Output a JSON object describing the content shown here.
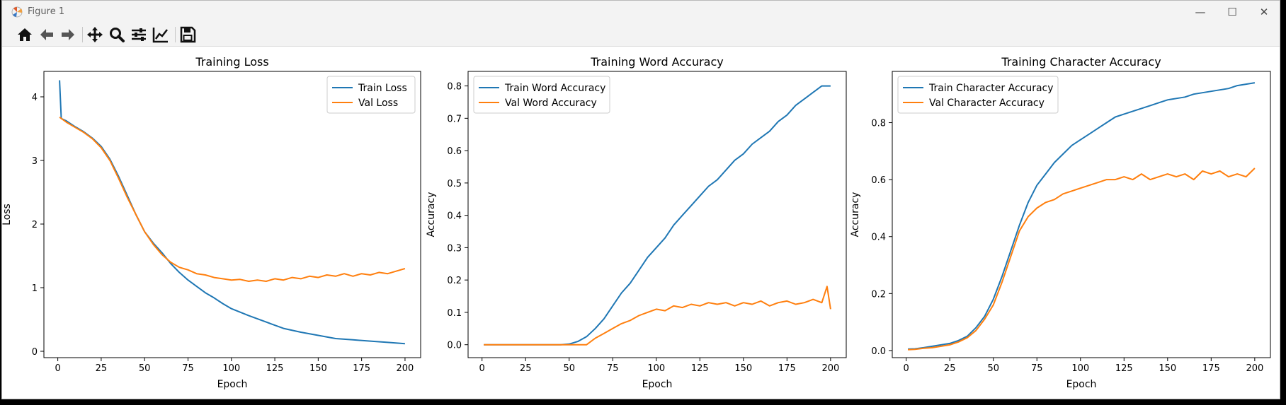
{
  "window": {
    "title": "Figure 1"
  },
  "toolbar": {
    "buttons": [
      {
        "name": "home-icon"
      },
      {
        "name": "back-arrow-icon"
      },
      {
        "name": "forward-arrow-icon"
      },
      {
        "name": "pan-icon"
      },
      {
        "name": "zoom-icon"
      },
      {
        "name": "subplots-config-icon"
      },
      {
        "name": "axes-edit-icon"
      },
      {
        "name": "save-icon"
      }
    ]
  },
  "chart_data": [
    {
      "type": "line",
      "title": "Training Loss",
      "xlabel": "Epoch",
      "ylabel": "Loss",
      "xlim": [
        -8,
        209
      ],
      "ylim": [
        -0.1,
        4.4
      ],
      "xticks": [
        0,
        25,
        50,
        75,
        100,
        125,
        150,
        175,
        200
      ],
      "yticks": [
        0,
        1,
        2,
        3,
        4
      ],
      "legend_location": "top-right",
      "series": [
        {
          "name": "Train Loss",
          "color": "#1f77b4",
          "x": [
            1,
            2,
            5,
            10,
            15,
            20,
            25,
            30,
            35,
            40,
            45,
            50,
            55,
            60,
            65,
            70,
            75,
            80,
            85,
            90,
            95,
            100,
            110,
            120,
            130,
            140,
            150,
            160,
            170,
            180,
            190,
            200
          ],
          "y": [
            4.26,
            3.66,
            3.62,
            3.53,
            3.45,
            3.35,
            3.22,
            3.02,
            2.75,
            2.45,
            2.15,
            1.88,
            1.7,
            1.55,
            1.38,
            1.24,
            1.12,
            1.02,
            0.92,
            0.84,
            0.75,
            0.67,
            0.56,
            0.46,
            0.36,
            0.3,
            0.25,
            0.2,
            0.18,
            0.16,
            0.14,
            0.12
          ]
        },
        {
          "name": "Val Loss",
          "color": "#ff7f0e",
          "x": [
            1,
            5,
            10,
            15,
            20,
            25,
            30,
            35,
            40,
            45,
            50,
            55,
            60,
            65,
            70,
            75,
            80,
            85,
            90,
            95,
            100,
            105,
            110,
            115,
            120,
            125,
            130,
            135,
            140,
            145,
            150,
            155,
            160,
            165,
            170,
            175,
            180,
            185,
            190,
            195,
            200
          ],
          "y": [
            3.68,
            3.6,
            3.52,
            3.44,
            3.34,
            3.2,
            3.0,
            2.72,
            2.42,
            2.15,
            1.88,
            1.68,
            1.52,
            1.4,
            1.32,
            1.28,
            1.22,
            1.2,
            1.16,
            1.14,
            1.12,
            1.13,
            1.1,
            1.12,
            1.1,
            1.14,
            1.12,
            1.16,
            1.14,
            1.18,
            1.16,
            1.2,
            1.18,
            1.22,
            1.18,
            1.22,
            1.2,
            1.24,
            1.22,
            1.26,
            1.3
          ]
        }
      ]
    },
    {
      "type": "line",
      "title": "Training Word Accuracy",
      "xlabel": "Epoch",
      "ylabel": "Accuracy",
      "xlim": [
        -8,
        209
      ],
      "ylim": [
        -0.04,
        0.845
      ],
      "xticks": [
        0,
        25,
        50,
        75,
        100,
        125,
        150,
        175,
        200
      ],
      "yticks": [
        0.0,
        0.1,
        0.2,
        0.3,
        0.4,
        0.5,
        0.6,
        0.7,
        0.8
      ],
      "ytick_labels": [
        "0.0",
        "0.1",
        "0.2",
        "0.3",
        "0.4",
        "0.5",
        "0.6",
        "0.7",
        "0.8"
      ],
      "legend_location": "top-left",
      "series": [
        {
          "name": "Train Word Accuracy",
          "color": "#1f77b4",
          "x": [
            1,
            45,
            50,
            55,
            60,
            65,
            70,
            75,
            80,
            85,
            90,
            95,
            100,
            105,
            110,
            115,
            120,
            125,
            130,
            135,
            140,
            145,
            150,
            155,
            160,
            165,
            170,
            175,
            180,
            185,
            190,
            195,
            200
          ],
          "y": [
            0,
            0,
            0.002,
            0.01,
            0.025,
            0.05,
            0.08,
            0.12,
            0.16,
            0.19,
            0.23,
            0.27,
            0.3,
            0.33,
            0.37,
            0.4,
            0.43,
            0.46,
            0.49,
            0.51,
            0.54,
            0.57,
            0.59,
            0.62,
            0.64,
            0.66,
            0.69,
            0.71,
            0.74,
            0.76,
            0.78,
            0.8,
            0.8
          ]
        },
        {
          "name": "Val Word Accuracy",
          "color": "#ff7f0e",
          "x": [
            1,
            60,
            65,
            70,
            75,
            80,
            85,
            90,
            95,
            100,
            105,
            110,
            115,
            120,
            125,
            130,
            135,
            140,
            145,
            150,
            155,
            160,
            165,
            170,
            175,
            180,
            185,
            190,
            195,
            198,
            200
          ],
          "y": [
            0,
            0,
            0.02,
            0.035,
            0.05,
            0.065,
            0.075,
            0.09,
            0.1,
            0.11,
            0.105,
            0.12,
            0.115,
            0.125,
            0.12,
            0.13,
            0.125,
            0.13,
            0.12,
            0.13,
            0.125,
            0.135,
            0.12,
            0.13,
            0.135,
            0.125,
            0.13,
            0.14,
            0.13,
            0.18,
            0.11
          ]
        }
      ]
    },
    {
      "type": "line",
      "title": "Training Character Accuracy",
      "xlabel": "Epoch",
      "ylabel": "Accuracy",
      "xlim": [
        -8,
        209
      ],
      "ylim": [
        -0.025,
        0.98
      ],
      "xticks": [
        0,
        25,
        50,
        75,
        100,
        125,
        150,
        175,
        200
      ],
      "yticks": [
        0.0,
        0.2,
        0.4,
        0.6,
        0.8
      ],
      "ytick_labels": [
        "0.0",
        "0.2",
        "0.4",
        "0.6",
        "0.8"
      ],
      "legend_location": "top-left",
      "series": [
        {
          "name": "Train Character Accuracy",
          "color": "#1f77b4",
          "x": [
            1,
            5,
            10,
            15,
            20,
            25,
            30,
            35,
            40,
            45,
            50,
            55,
            60,
            65,
            70,
            75,
            80,
            85,
            90,
            95,
            100,
            105,
            110,
            115,
            120,
            125,
            130,
            135,
            140,
            145,
            150,
            155,
            160,
            165,
            170,
            175,
            180,
            185,
            190,
            195,
            200
          ],
          "y": [
            0.005,
            0.006,
            0.01,
            0.015,
            0.02,
            0.025,
            0.035,
            0.05,
            0.08,
            0.12,
            0.18,
            0.26,
            0.35,
            0.44,
            0.52,
            0.58,
            0.62,
            0.66,
            0.69,
            0.72,
            0.74,
            0.76,
            0.78,
            0.8,
            0.82,
            0.83,
            0.84,
            0.85,
            0.86,
            0.87,
            0.88,
            0.885,
            0.89,
            0.9,
            0.905,
            0.91,
            0.915,
            0.92,
            0.93,
            0.935,
            0.94
          ]
        },
        {
          "name": "Val Character Accuracy",
          "color": "#ff7f0e",
          "x": [
            1,
            5,
            10,
            15,
            20,
            25,
            30,
            35,
            40,
            45,
            50,
            55,
            60,
            65,
            70,
            75,
            80,
            85,
            90,
            95,
            100,
            105,
            110,
            115,
            120,
            125,
            130,
            135,
            140,
            145,
            150,
            155,
            160,
            165,
            170,
            175,
            180,
            185,
            190,
            195,
            200
          ],
          "y": [
            0.003,
            0.004,
            0.008,
            0.01,
            0.015,
            0.02,
            0.03,
            0.045,
            0.07,
            0.11,
            0.16,
            0.24,
            0.33,
            0.42,
            0.47,
            0.5,
            0.52,
            0.53,
            0.55,
            0.56,
            0.57,
            0.58,
            0.59,
            0.6,
            0.6,
            0.61,
            0.6,
            0.62,
            0.6,
            0.61,
            0.62,
            0.61,
            0.62,
            0.6,
            0.63,
            0.62,
            0.63,
            0.61,
            0.62,
            0.61,
            0.64
          ]
        }
      ]
    }
  ]
}
